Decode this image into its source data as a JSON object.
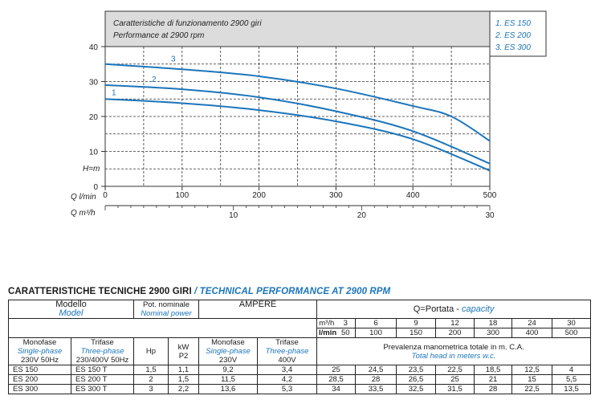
{
  "chart_data": {
    "type": "line",
    "title_it": "Caratteristiche di funzionamento 2900 giri",
    "title_en": "Performance at 2900 rpm",
    "legend": [
      "1. ES 150",
      "2. ES 200",
      "3. ES 300"
    ],
    "x_label": "Q l/min",
    "x2_label": "Q m³/h",
    "y_label": "H=m",
    "xlim": [
      0,
      500
    ],
    "ylim": [
      0,
      40
    ],
    "x_ticks": [
      "0",
      "100",
      "200",
      "300",
      "400",
      "500"
    ],
    "x2_ticks": [
      "0",
      "10",
      "20",
      "30"
    ],
    "y_ticks": [
      "0",
      "10",
      "20",
      "30",
      "40"
    ],
    "series": [
      {
        "name": "1",
        "x": [
          0,
          100,
          200,
          300,
          400,
          500
        ],
        "y": [
          25,
          23.8,
          21.8,
          18.6,
          13.5,
          4.5
        ]
      },
      {
        "name": "2",
        "x": [
          0,
          100,
          200,
          300,
          400,
          500
        ],
        "y": [
          29,
          27.8,
          25.5,
          21.5,
          15.8,
          6.5
        ]
      },
      {
        "name": "3",
        "x": [
          0,
          100,
          200,
          300,
          400,
          450,
          500
        ],
        "y": [
          35,
          33.5,
          31.5,
          28,
          23,
          20,
          13
        ]
      }
    ]
  },
  "table": {
    "title_it": "CARATTERISTICHE TECNICHE 2900 GIRI",
    "title_sep": " / ",
    "title_en": "TECHNICAL PERFORMANCE AT 2900 RPM",
    "modello": "Modello",
    "model": "Model",
    "pot_nominale": "Pot. nominale",
    "nominal_power": "Nominal power",
    "ampere": "AMPERE",
    "portata": "Q=Portata - ",
    "capacity": "capacity",
    "m3h_label": "m³/h",
    "lmin_label": "l/min",
    "m3h_values": [
      "3",
      "6",
      "9",
      "12",
      "18",
      "24",
      "30"
    ],
    "lmin_values": [
      "50",
      "100",
      "150",
      "200",
      "300",
      "400",
      "500"
    ],
    "monofase": "Monofase",
    "single_phase": "Single-phase",
    "mono_volt": "230V 50Hz",
    "trifase": "Trifase",
    "three_phase": "Three-phase",
    "tri_volt": "230/400V 50Hz",
    "hp": "Hp",
    "kw": "kW",
    "p2": "P2",
    "amp_mono_volt": "230V",
    "amp_tri_volt": "400V",
    "prevalenza": "Prevalenza manometrica totale in m. C.A.",
    "total_head": "Total head in meters w.c.",
    "rows": [
      {
        "mono": "ES 150",
        "tri": "ES 150 T",
        "hp": "1,5",
        "kw": "1,1",
        "a_mono": "9,2",
        "a_tri": "3,4",
        "h": [
          "25",
          "24,5",
          "23,5",
          "22,5",
          "18,5",
          "12,5",
          "4"
        ]
      },
      {
        "mono": "ES 200",
        "tri": "ES 200 T",
        "hp": "2",
        "kw": "1,5",
        "a_mono": "11,5",
        "a_tri": "4,2",
        "h": [
          "28,5",
          "28",
          "26,5",
          "25",
          "21",
          "15",
          "5,5"
        ]
      },
      {
        "mono": "ES 300",
        "tri": "ES 300 T",
        "hp": "3",
        "kw": "2,2",
        "a_mono": "13,6",
        "a_tri": "5,3",
        "h": [
          "34",
          "33,5",
          "32,5",
          "31,5",
          "28",
          "22,5",
          "13,5"
        ]
      }
    ]
  }
}
